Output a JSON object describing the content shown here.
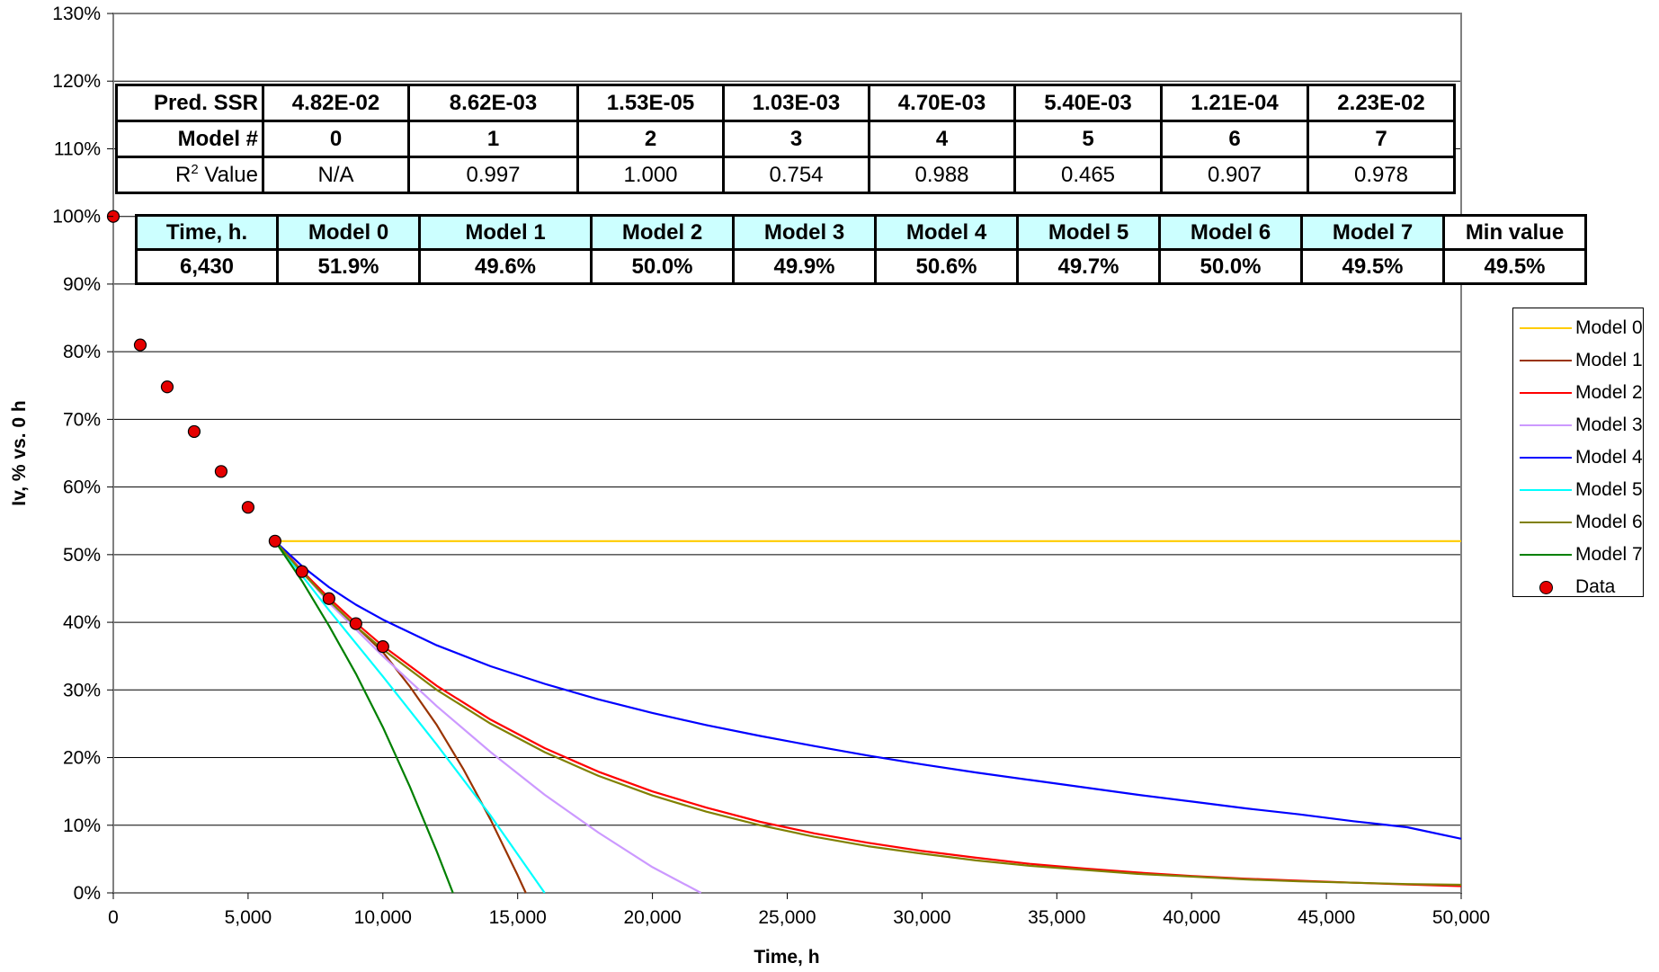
{
  "chart_data": {
    "type": "line",
    "xlabel": "Time, h",
    "ylabel": "Iv, % vs. 0 h",
    "xlim": [
      0,
      50000
    ],
    "ylim": [
      0,
      130
    ],
    "x_ticks": [
      "0",
      "5,000",
      "10,000",
      "15,000",
      "20,000",
      "25,000",
      "30,000",
      "35,000",
      "40,000",
      "45,000",
      "50,000"
    ],
    "y_ticks": [
      "0%",
      "10%",
      "20%",
      "30%",
      "40%",
      "50%",
      "60%",
      "70%",
      "80%",
      "90%",
      "100%",
      "110%",
      "120%",
      "130%"
    ],
    "grid": "horizontal",
    "legend_position": "right",
    "series": [
      {
        "name": "Model 0",
        "color": "#ffcc00",
        "x": [
          6000,
          50000
        ],
        "y": [
          52,
          52
        ]
      },
      {
        "name": "Model 1",
        "color": "#993300",
        "x": [
          6000,
          7000,
          8000,
          9000,
          10000,
          11000,
          12000,
          13000,
          14000,
          15000,
          15300
        ],
        "y": [
          52,
          47.4,
          43.2,
          39.4,
          35.6,
          30.5,
          24.8,
          18.2,
          10.8,
          2.6,
          0
        ]
      },
      {
        "name": "Model 2",
        "color": "#ff0000",
        "x": [
          6000,
          7000,
          8000,
          9000,
          10000,
          12000,
          14000,
          16000,
          18000,
          20000,
          22000,
          24000,
          26000,
          28000,
          30000,
          32000,
          34000,
          36000,
          38000,
          40000,
          42000,
          44000,
          46000,
          48000,
          50000
        ],
        "y": [
          52,
          47.6,
          43.6,
          39.9,
          36.5,
          30.6,
          25.6,
          21.4,
          17.9,
          15.0,
          12.6,
          10.5,
          8.8,
          7.4,
          6.2,
          5.2,
          4.3,
          3.6,
          3.0,
          2.5,
          2.1,
          1.8,
          1.5,
          1.25,
          1.0
        ]
      },
      {
        "name": "Model 3",
        "color": "#cc99ff",
        "x": [
          6000,
          8000,
          10000,
          12000,
          14000,
          16000,
          18000,
          20000,
          21800
        ],
        "y": [
          52,
          42.9,
          35.0,
          27.6,
          20.8,
          14.5,
          8.9,
          3.8,
          0
        ]
      },
      {
        "name": "Model 4",
        "color": "#0000ff",
        "x": [
          6000,
          7000,
          8000,
          9000,
          10000,
          12000,
          14000,
          16000,
          18000,
          20000,
          22000,
          24000,
          26000,
          28000,
          30000,
          32000,
          34000,
          36000,
          38000,
          40000,
          42000,
          44000,
          46000,
          48000,
          50000
        ],
        "y": [
          52,
          48.3,
          45.2,
          42.6,
          40.4,
          36.6,
          33.5,
          30.9,
          28.6,
          26.6,
          24.8,
          23.2,
          21.7,
          20.3,
          19.0,
          17.8,
          16.7,
          15.6,
          14.5,
          13.5,
          12.5,
          11.6,
          10.6,
          9.7,
          8.0
        ]
      },
      {
        "name": "Model 5",
        "color": "#00ffff",
        "x": [
          6000,
          8000,
          10000,
          12000,
          14000,
          16000
        ],
        "y": [
          52,
          41.8,
          32.0,
          21.9,
          11.4,
          0
        ]
      },
      {
        "name": "Model 6",
        "color": "#808000",
        "x": [
          6000,
          7000,
          8000,
          9000,
          10000,
          12000,
          14000,
          16000,
          18000,
          20000,
          22000,
          24000,
          26000,
          28000,
          30000,
          32000,
          34000,
          36000,
          38000,
          40000,
          42000,
          44000,
          46000,
          48000,
          50000
        ],
        "y": [
          52,
          47.4,
          43.2,
          39.4,
          36.0,
          30.0,
          25.0,
          20.8,
          17.3,
          14.4,
          12.0,
          10.0,
          8.3,
          6.9,
          5.8,
          4.8,
          4.0,
          3.4,
          2.8,
          2.4,
          2.0,
          1.7,
          1.5,
          1.3,
          1.2
        ]
      },
      {
        "name": "Model 7",
        "color": "#008000",
        "x": [
          6000,
          7000,
          8000,
          9000,
          10000,
          11000,
          12000,
          12600
        ],
        "y": [
          52,
          46.1,
          39.5,
          32.4,
          24.5,
          15.7,
          6.1,
          0
        ]
      },
      {
        "name": "Data",
        "color": "#e60000",
        "marker": "circle",
        "x": [
          0,
          1000,
          2000,
          3000,
          4000,
          5000,
          6000,
          7000,
          8000,
          9000,
          10000
        ],
        "y": [
          100,
          81,
          74.8,
          68.2,
          62.3,
          57,
          52,
          47.5,
          43.5,
          39.8,
          36.4
        ]
      }
    ]
  },
  "stats_table": {
    "rows": [
      {
        "label": "Pred. SSR",
        "values": [
          "4.82E-02",
          "8.62E-03",
          "1.53E-05",
          "1.03E-03",
          "4.70E-03",
          "5.40E-03",
          "1.21E-04",
          "2.23E-02"
        ]
      },
      {
        "label": "Model #",
        "values": [
          "0",
          "1",
          "2",
          "3",
          "4",
          "5",
          "6",
          "7"
        ]
      },
      {
        "label": "R",
        "label_sup": "2",
        "label_suffix": " Value",
        "values": [
          "N/A",
          "0.997",
          "1.000",
          "0.754",
          "0.988",
          "0.465",
          "0.907",
          "0.978"
        ]
      }
    ]
  },
  "prediction_table": {
    "headers": [
      "Time, h.",
      "Model 0",
      "Model 1",
      "Model 2",
      "Model 3",
      "Model 4",
      "Model 5",
      "Model 6",
      "Model 7",
      "Min value"
    ],
    "values": [
      "6,430",
      "51.9%",
      "49.6%",
      "50.0%",
      "49.9%",
      "50.6%",
      "49.7%",
      "50.0%",
      "49.5%",
      "49.5%"
    ]
  }
}
